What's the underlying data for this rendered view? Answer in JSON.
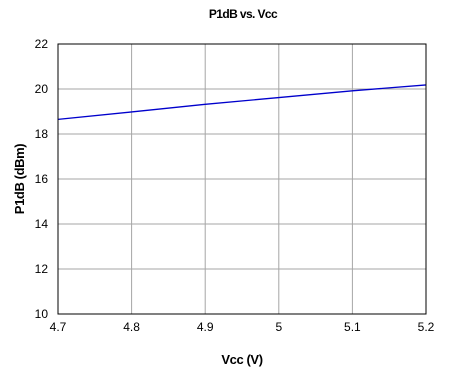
{
  "chart_data": {
    "type": "line",
    "title": "P1dB vs. Vcc",
    "xlabel": "Vcc (V)",
    "ylabel": "P1dB (dBm)",
    "xlim": [
      4.7,
      5.2
    ],
    "ylim": [
      10,
      22
    ],
    "x_ticks": [
      "4.7",
      "4.8",
      "4.9",
      "5",
      "5.1",
      "5.2"
    ],
    "y_ticks": [
      "10",
      "12",
      "14",
      "16",
      "18",
      "20",
      "22"
    ],
    "grid": true,
    "legend": "none",
    "series": [
      {
        "color": "#0000cc",
        "x": [
          4.7,
          4.8,
          4.9,
          5.0,
          5.1,
          5.2
        ],
        "y": [
          18.65,
          18.98,
          19.32,
          19.62,
          19.92,
          20.18
        ]
      }
    ]
  }
}
